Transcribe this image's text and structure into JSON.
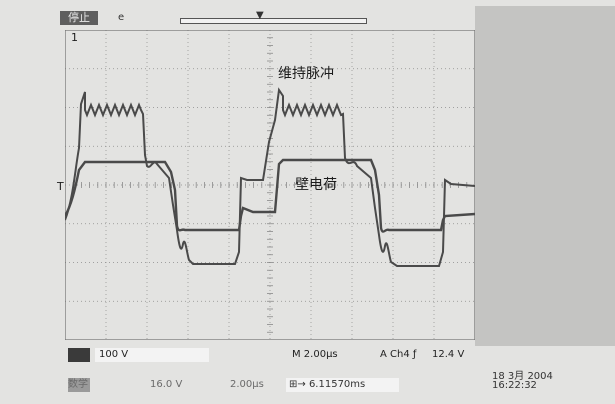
{
  "header": {
    "run_status": "停止",
    "trigger_marker": "e"
  },
  "plot": {
    "channel_marker": "1",
    "ground_marker": "T",
    "annotation_sustain": "维持脉冲",
    "annotation_wall": "壁电荷",
    "colors": {
      "screen": "#e3e3e1",
      "grid": "#8a8a8a",
      "trace": "#4a4a4a"
    }
  },
  "footer": {
    "channel_scale": "100 V",
    "time_scale": "M 2.00μs",
    "trigger_source": "A  Ch4  ƒ",
    "trigger_level": "12.4 V"
  },
  "status": {
    "math_label": "数学",
    "math_scale": "16.0 V",
    "math_time": "2.00μs",
    "cursor_readout": "6.11570ms",
    "date": "18 3月  2004",
    "time": "16:22:32"
  }
}
